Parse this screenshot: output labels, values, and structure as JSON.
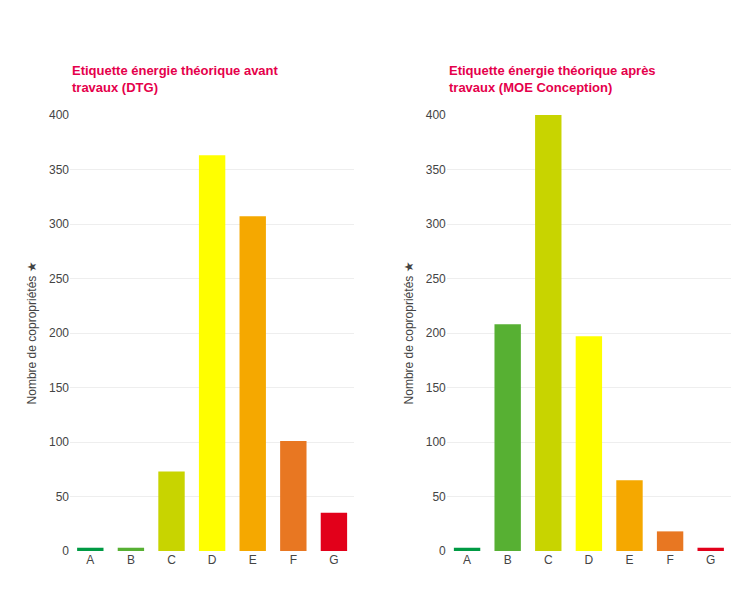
{
  "chart_data": [
    {
      "type": "bar",
      "title": "Etiquette énergie théorique avant\ntravaux (DTG)",
      "categories": [
        "A",
        "B",
        "C",
        "D",
        "E",
        "F",
        "G"
      ],
      "values": [
        3,
        3,
        73,
        363,
        307,
        101,
        35
      ],
      "colors": [
        "#009a44",
        "#57b033",
        "#c8d400",
        "#ffff00",
        "#f5a800",
        "#e87722",
        "#e2001a"
      ],
      "ylabel": "Nombre de copropriétés",
      "annotation": "★",
      "ylim": [
        0,
        400
      ],
      "yticks": [
        0,
        50,
        100,
        150,
        200,
        250,
        300,
        350,
        400
      ],
      "grid": true
    },
    {
      "type": "bar",
      "title": "Etiquette énergie théorique après\ntravaux (MOE Conception)",
      "categories": [
        "A",
        "B",
        "C",
        "D",
        "E",
        "F",
        "G"
      ],
      "values": [
        3,
        208,
        400,
        197,
        65,
        18,
        3
      ],
      "colors": [
        "#009a44",
        "#57b033",
        "#c8d400",
        "#ffff00",
        "#f5a800",
        "#e87722",
        "#e2001a"
      ],
      "ylabel": "Nombre de copropriétés",
      "annotation": "★",
      "ylim": [
        0,
        400
      ],
      "yticks": [
        0,
        50,
        100,
        150,
        200,
        250,
        300,
        350,
        400
      ],
      "grid": true
    }
  ]
}
